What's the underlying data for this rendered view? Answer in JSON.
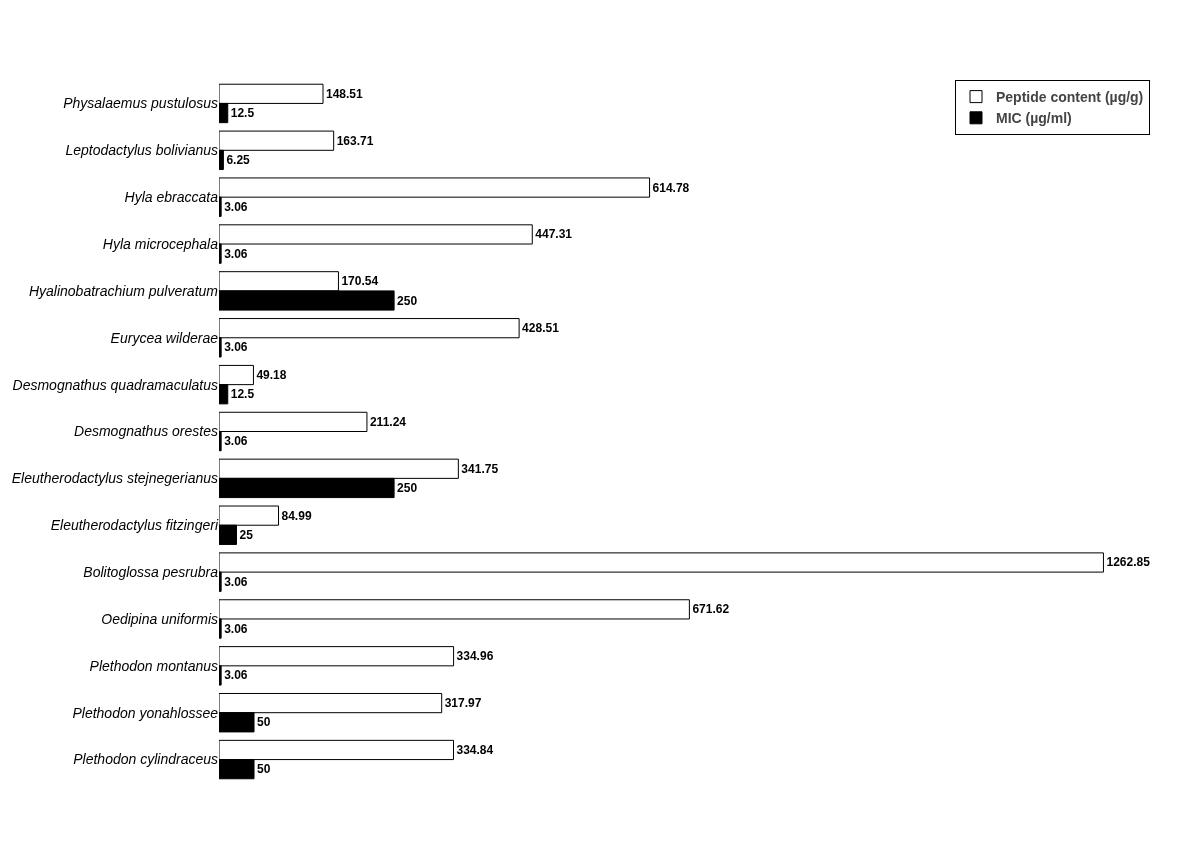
{
  "chart_data": {
    "type": "bar",
    "orientation": "horizontal",
    "data_labels": true,
    "tick_labels": "y",
    "grid": false,
    "legend": "top right",
    "categories": [
      "Physalaemus pustulosus",
      "Leptodactylus bolivianus",
      "Hyla ebraccata",
      "Hyla microcephala",
      "Hyalinobatrachium pulveratum",
      "Eurycea wilderae",
      "Desmognathus quadramaculatus",
      "Desmognathus orestes",
      "Eleutherodactylus stejnegerianus",
      "Eleutherodactylus fitzingeri",
      "Bolitoglossa pesrubra",
      "Oedipina uniformis",
      "Plethodon montanus",
      "Plethodon yonahlossee",
      "Plethodon cylindraceus"
    ],
    "series": [
      {
        "name": "Peptide content (µg/g)",
        "color": "#ffffff",
        "values": [
          148.51,
          163.71,
          614.78,
          447.31,
          170.54,
          428.51,
          49.18,
          211.24,
          341.75,
          84.99,
          1262.85,
          671.62,
          334.96,
          317.97,
          334.84
        ]
      },
      {
        "name": "MIC (µg/ml)",
        "color": "#000000",
        "values": [
          12.5,
          6.25,
          3.06,
          3.06,
          250,
          3.06,
          12.5,
          3.06,
          250,
          25,
          3.06,
          3.06,
          3.06,
          50,
          50
        ]
      }
    ]
  }
}
